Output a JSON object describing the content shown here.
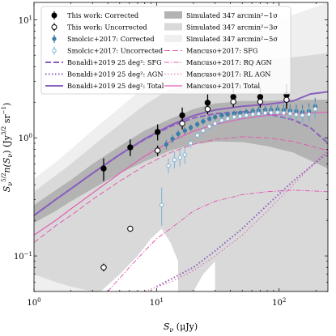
{
  "chart_data": {
    "type": "scatter",
    "xlabel": "S_ν (μJy)",
    "ylabel": "S_ν^{5/2} n(S_ν) (Jy^{3/2} sr^{-1})",
    "x_scale": "log",
    "y_scale": "log",
    "xlim": [
      1,
      250
    ],
    "ylim": [
      0.05,
      14
    ],
    "x_ticks": [
      {
        "value": 1,
        "label": "10",
        "exp": "0"
      },
      {
        "value": 10,
        "label": "10",
        "exp": "1"
      },
      {
        "value": 100,
        "label": "10",
        "exp": "2"
      }
    ],
    "y_ticks": [
      {
        "value": 0.1,
        "label": "10",
        "exp": "−1"
      },
      {
        "value": 1,
        "label": "10",
        "exp": "0"
      },
      {
        "value": 10,
        "label": "10",
        "exp": "1"
      }
    ],
    "legend_position": "top",
    "bands": [
      {
        "name": "Simulated 347 arcmin²−5σ",
        "color": "#efefef",
        "x": [
          1,
          1.5,
          2,
          3,
          5,
          8,
          13,
          20,
          30,
          50,
          80,
          130,
          250
        ],
        "upper": [
          0.45,
          0.62,
          0.8,
          1.15,
          1.8,
          2.7,
          3.9,
          5.2,
          6.5,
          8.2,
          9.5,
          11,
          14
        ],
        "lower": [
          0.05,
          0.05,
          0.05,
          0.05,
          0.05,
          0.05,
          0.05,
          0.05,
          0.05,
          0.05,
          0.05,
          0.05,
          0.05
        ]
      },
      {
        "name": "Simulated 347 arcmin²−3σ",
        "color": "#d9d9d9",
        "x": [
          1,
          1.5,
          2,
          3,
          5,
          8,
          13,
          20,
          30,
          50,
          80,
          130,
          250
        ],
        "upper": [
          0.35,
          0.48,
          0.6,
          0.85,
          1.3,
          1.9,
          2.6,
          3.3,
          3.9,
          4.4,
          4.6,
          4.8,
          5.2
        ],
        "lower": [
          0.07,
          0.06,
          0.055,
          0.05,
          0.05,
          0.05,
          0.05,
          0.05,
          0.05,
          0.05,
          0.05,
          0.05,
          0.05
        ]
      },
      {
        "name": "Simulated 347 arcmin²−1σ",
        "color": "#b3b3b3",
        "x": [
          1,
          1.5,
          2,
          3,
          5,
          8,
          13,
          20,
          30,
          50,
          80,
          130,
          250
        ],
        "upper": [
          0.27,
          0.36,
          0.44,
          0.6,
          0.85,
          1.15,
          1.45,
          1.75,
          1.95,
          2.05,
          2.05,
          2.1,
          2.1
        ],
        "lower": [
          0.19,
          0.24,
          0.29,
          0.37,
          0.5,
          0.63,
          0.78,
          0.88,
          0.93,
          0.92,
          0.85,
          0.75,
          0.55
        ]
      }
    ],
    "white_holes": [
      {
        "x": [
          3.5,
          5,
          7,
          9,
          11,
          13,
          15,
          15,
          3.5
        ],
        "y": [
          0.05,
          0.07,
          0.1,
          0.14,
          0.17,
          0.13,
          0.09,
          0.05,
          0.05
        ]
      },
      {
        "x": [
          20,
          24,
          30,
          30,
          20
        ],
        "y": [
          0.05,
          0.07,
          0.09,
          0.05,
          0.05
        ]
      }
    ],
    "series": [
      {
        "name": "This work: Corrected",
        "kind": "points",
        "marker": "filled-circle",
        "color": "#000000",
        "x": [
          3.7,
          6.1,
          10.2,
          16.2,
          26.1,
          42.3,
          70.1,
          115
        ],
        "y": [
          0.55,
          0.83,
          1.12,
          1.55,
          1.98,
          2.22,
          2.22,
          2.3
        ],
        "err_lo": [
          0.43,
          0.7,
          0.95,
          1.3,
          1.66,
          1.85,
          1.8,
          1.75
        ],
        "err_hi": [
          0.67,
          0.97,
          1.3,
          1.8,
          2.33,
          2.6,
          2.65,
          2.85
        ]
      },
      {
        "name": "This work: Uncorrected",
        "kind": "points",
        "marker": "open-circle",
        "color": "#000000",
        "x": [
          3.7,
          6.1,
          10.2,
          16.2,
          26.1,
          42.3,
          70.1,
          115
        ],
        "y": [
          0.08,
          0.17,
          0.78,
          1.32,
          1.75,
          2.02,
          2.02,
          2.1
        ],
        "err_lo": [
          0.074,
          0.16,
          0.7,
          1.18,
          1.58,
          1.82,
          1.82,
          1.85
        ],
        "err_hi": [
          0.086,
          0.18,
          0.86,
          1.46,
          1.92,
          2.22,
          2.22,
          2.35
        ]
      },
      {
        "name": "Smolcic+2017: Corrected",
        "kind": "points",
        "marker": "filled-circle-small",
        "color": "#3d7ea6",
        "x": [
          12,
          13.5,
          15,
          17,
          19,
          21.5,
          24,
          27,
          30,
          34,
          38,
          43,
          48,
          54,
          61,
          68,
          77,
          86,
          97,
          109,
          123,
          138,
          155,
          175,
          197
        ],
        "y": [
          0.88,
          0.98,
          1.08,
          1.15,
          1.22,
          1.3,
          1.38,
          1.45,
          1.5,
          1.55,
          1.58,
          1.6,
          1.62,
          1.65,
          1.68,
          1.7,
          1.72,
          1.72,
          1.74,
          1.72,
          1.7,
          1.68,
          1.65,
          1.68,
          1.85
        ],
        "err_lo": [
          0.8,
          0.9,
          1.0,
          1.07,
          1.14,
          1.22,
          1.3,
          1.37,
          1.42,
          1.46,
          1.49,
          1.5,
          1.52,
          1.54,
          1.56,
          1.57,
          1.58,
          1.57,
          1.57,
          1.53,
          1.49,
          1.45,
          1.4,
          1.4,
          1.52
        ],
        "err_hi": [
          0.96,
          1.06,
          1.16,
          1.23,
          1.3,
          1.38,
          1.46,
          1.53,
          1.58,
          1.64,
          1.67,
          1.7,
          1.72,
          1.76,
          1.8,
          1.83,
          1.86,
          1.87,
          1.91,
          1.91,
          1.91,
          1.91,
          1.9,
          1.96,
          2.18
        ]
      },
      {
        "name": "Smolcic+2017: Uncorrected",
        "kind": "points",
        "marker": "open-circle-small",
        "color": "#7fb3d5",
        "x": [
          11,
          12.5,
          14,
          15.5,
          17,
          19,
          21.5,
          24,
          27,
          30,
          34,
          38,
          43,
          48,
          54,
          61,
          68,
          77,
          86,
          97,
          109,
          123,
          138,
          155,
          175,
          197
        ],
        "y": [
          0.27,
          0.58,
          0.65,
          0.68,
          0.72,
          0.9,
          1.05,
          1.15,
          1.25,
          1.32,
          1.4,
          1.45,
          1.5,
          1.52,
          1.55,
          1.58,
          1.6,
          1.62,
          1.63,
          1.64,
          1.62,
          1.6,
          1.57,
          1.55,
          1.58,
          1.75
        ],
        "err_lo": [
          0.18,
          0.5,
          0.55,
          0.57,
          0.6,
          0.82,
          0.97,
          1.07,
          1.17,
          1.24,
          1.31,
          1.36,
          1.4,
          1.42,
          1.44,
          1.46,
          1.47,
          1.48,
          1.48,
          1.47,
          1.44,
          1.41,
          1.37,
          1.33,
          1.33,
          1.44
        ],
        "err_hi": [
          0.38,
          0.67,
          0.76,
          0.8,
          0.85,
          0.98,
          1.13,
          1.23,
          1.33,
          1.4,
          1.49,
          1.54,
          1.6,
          1.62,
          1.66,
          1.7,
          1.73,
          1.76,
          1.78,
          1.81,
          1.8,
          1.79,
          1.77,
          1.77,
          1.83,
          2.06
        ]
      },
      {
        "name": "Bonaldi+2019 25 deg²: SFG",
        "kind": "line",
        "style": "dashed",
        "width": 2,
        "color": "#8b5fbf",
        "x": [
          1,
          1.5,
          2,
          3,
          5,
          8,
          13,
          20,
          30,
          50,
          80,
          130,
          180,
          250
        ],
        "y": [
          0.22,
          0.3,
          0.37,
          0.5,
          0.72,
          0.97,
          1.25,
          1.47,
          1.6,
          1.66,
          1.6,
          1.42,
          1.22,
          0.9
        ]
      },
      {
        "name": "Bonaldi+2019 25 deg²: AGN",
        "kind": "line",
        "style": "dotted",
        "width": 2,
        "color": "#8b5fbf",
        "x": [
          10,
          20,
          30,
          50,
          80,
          130,
          250
        ],
        "y": [
          0.055,
          0.08,
          0.11,
          0.17,
          0.27,
          0.43,
          0.75
        ]
      },
      {
        "name": "Bonaldi+2019 25 deg²: Total",
        "kind": "line",
        "style": "solid",
        "width": 2,
        "color": "#8b5fbf",
        "x": [
          1,
          1.5,
          2,
          3,
          5,
          8,
          13,
          20,
          30,
          50,
          80,
          130,
          180,
          250
        ],
        "y": [
          0.22,
          0.3,
          0.37,
          0.5,
          0.72,
          0.98,
          1.28,
          1.54,
          1.72,
          1.85,
          1.92,
          2.05,
          2.35,
          2.45
        ]
      },
      {
        "name": "Mancuso+2017: SFG",
        "kind": "line",
        "style": "dashed",
        "width": 1,
        "color": "#e05fb4",
        "x": [
          1,
          1.5,
          2,
          3,
          5,
          8,
          13,
          20,
          30,
          50,
          80,
          130,
          250
        ],
        "y": [
          0.13,
          0.18,
          0.22,
          0.3,
          0.43,
          0.58,
          0.75,
          0.88,
          0.97,
          1.02,
          1.0,
          0.93,
          0.78
        ]
      },
      {
        "name": "Mancuso+2017: RQ AGN",
        "kind": "line",
        "style": "dashdot",
        "width": 1,
        "color": "#e05fb4",
        "x": [
          4,
          6,
          8,
          10,
          13,
          20,
          30,
          50,
          80,
          130,
          250
        ],
        "y": [
          0.05,
          0.08,
          0.11,
          0.14,
          0.17,
          0.24,
          0.29,
          0.33,
          0.35,
          0.36,
          0.35
        ]
      },
      {
        "name": "Mancuso+2017: RL AGN",
        "kind": "line",
        "style": "dotted",
        "width": 1,
        "color": "#e05fb4",
        "x": [
          8,
          13,
          20,
          30,
          50,
          80,
          130,
          250
        ],
        "y": [
          0.05,
          0.06,
          0.075,
          0.1,
          0.15,
          0.24,
          0.4,
          0.8
        ]
      },
      {
        "name": "Mancuso+2017: Total",
        "kind": "line",
        "style": "solid",
        "width": 1.2,
        "color": "#e05fb4",
        "x": [
          1,
          1.5,
          2,
          3,
          5,
          8,
          13,
          20,
          30,
          50,
          80,
          130,
          250
        ],
        "y": [
          0.15,
          0.2,
          0.25,
          0.34,
          0.5,
          0.7,
          0.93,
          1.14,
          1.3,
          1.45,
          1.55,
          1.6,
          1.65
        ]
      }
    ],
    "legend": {
      "left": [
        {
          "label": "This work: Corrected",
          "marker": "filled-circle",
          "color": "#000000"
        },
        {
          "label": "This work: Uncorrected",
          "marker": "open-circle",
          "color": "#000000"
        },
        {
          "label": "Smolcic+2017: Corrected",
          "marker": "filled-circle-small",
          "color": "#3d7ea6"
        },
        {
          "label": "Smolcic+2017: Uncorrected",
          "marker": "open-circle-small",
          "color": "#7fb3d5"
        },
        {
          "label": "Bonaldi+2019 25 deg²: SFG",
          "line": "dashed",
          "width": 2,
          "color": "#8b5fbf"
        },
        {
          "label": "Bonaldi+2019 25 deg²: AGN",
          "line": "dotted",
          "width": 2,
          "color": "#8b5fbf"
        },
        {
          "label": "Bonaldi+2019 25 deg²: Total",
          "line": "solid",
          "width": 2,
          "color": "#8b5fbf"
        }
      ],
      "right": [
        {
          "label": "Simulated 347 arcmin²−1σ",
          "patch": "#b3b3b3"
        },
        {
          "label": "Simulated 347 arcmin²−3σ",
          "patch": "#d9d9d9"
        },
        {
          "label": "Simulated 347 arcmin²−5σ",
          "patch": "#efefef"
        },
        {
          "label": "Mancuso+2017: SFG",
          "line": "dashed",
          "width": 1,
          "color": "#e05fb4"
        },
        {
          "label": "Mancuso+2017: RQ AGN",
          "line": "dashdot",
          "width": 1,
          "color": "#e05fb4"
        },
        {
          "label": "Mancuso+2017: RL AGN",
          "line": "dotted",
          "width": 1,
          "color": "#e05fb4"
        },
        {
          "label": "Mancuso+2017: Total",
          "line": "solid",
          "width": 1.2,
          "color": "#e05fb4"
        }
      ]
    }
  }
}
